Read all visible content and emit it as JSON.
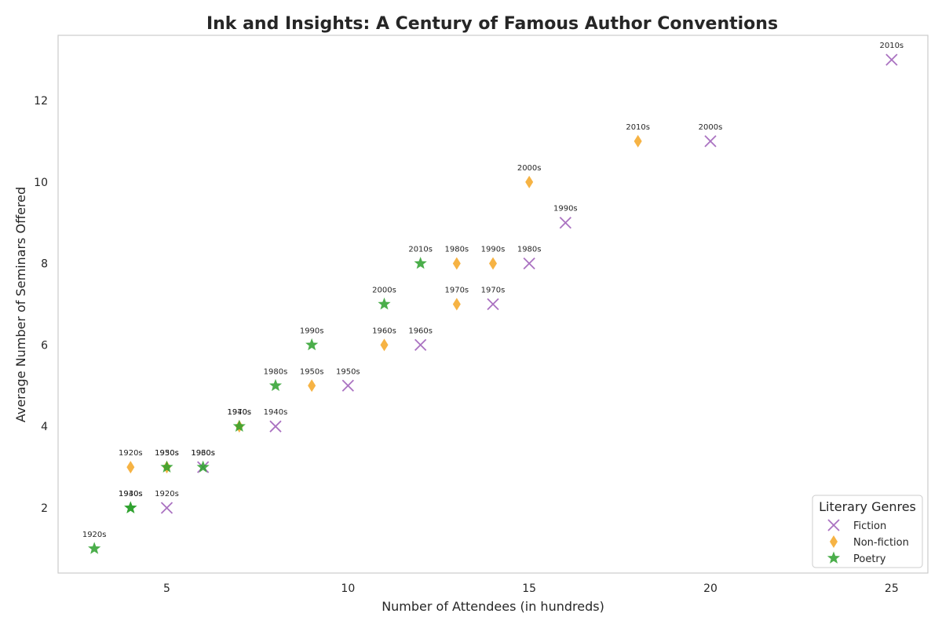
{
  "chart_data": {
    "type": "scatter",
    "title": "Ink and Insights: A Century of Famous Author Conventions",
    "xlabel": "Number of Attendees (in hundreds)",
    "ylabel": "Average Number of Seminars Offered",
    "xlim": [
      2,
      26
    ],
    "ylim": [
      0.4,
      13.6
    ],
    "xticks": [
      5,
      10,
      15,
      20,
      25
    ],
    "yticks": [
      2,
      4,
      6,
      8,
      10,
      12
    ],
    "grid": false,
    "legend_title": "Literary Genres",
    "legend_position": "lower-right",
    "series": [
      {
        "name": "Fiction",
        "marker": "x",
        "color": "#9b59b6",
        "points": [
          {
            "x": 5,
            "y": 2,
            "label": "1920s"
          },
          {
            "x": 6,
            "y": 3,
            "label": "1930s"
          },
          {
            "x": 8,
            "y": 4,
            "label": "1940s"
          },
          {
            "x": 10,
            "y": 5,
            "label": "1950s"
          },
          {
            "x": 12,
            "y": 6,
            "label": "1960s"
          },
          {
            "x": 14,
            "y": 7,
            "label": "1970s"
          },
          {
            "x": 15,
            "y": 8,
            "label": "1980s"
          },
          {
            "x": 16,
            "y": 9,
            "label": "1990s"
          },
          {
            "x": 20,
            "y": 11,
            "label": "2000s"
          },
          {
            "x": 25,
            "y": 13,
            "label": "2010s"
          }
        ]
      },
      {
        "name": "Non-fiction",
        "marker": "diamond",
        "color": "#f5a623",
        "points": [
          {
            "x": 4,
            "y": 3,
            "label": "1920s"
          },
          {
            "x": 5,
            "y": 3,
            "label": "1930s"
          },
          {
            "x": 7,
            "y": 4,
            "label": "1940s"
          },
          {
            "x": 9,
            "y": 5,
            "label": "1950s"
          },
          {
            "x": 11,
            "y": 6,
            "label": "1960s"
          },
          {
            "x": 13,
            "y": 7,
            "label": "1970s"
          },
          {
            "x": 13,
            "y": 8,
            "label": "1980s"
          },
          {
            "x": 14,
            "y": 8,
            "label": "1990s"
          },
          {
            "x": 15,
            "y": 10,
            "label": "2000s"
          },
          {
            "x": 18,
            "y": 11,
            "label": "2010s"
          }
        ]
      },
      {
        "name": "Poetry",
        "marker": "star",
        "color": "#2ca02c",
        "points": [
          {
            "x": 3,
            "y": 1,
            "label": "1920s"
          },
          {
            "x": 4,
            "y": 2,
            "label": "1930s"
          },
          {
            "x": 4,
            "y": 2,
            "label": "1940s"
          },
          {
            "x": 5,
            "y": 3,
            "label": "1950s"
          },
          {
            "x": 6,
            "y": 3,
            "label": "1960s"
          },
          {
            "x": 7,
            "y": 4,
            "label": "1970s"
          },
          {
            "x": 8,
            "y": 5,
            "label": "1980s"
          },
          {
            "x": 9,
            "y": 6,
            "label": "1990s"
          },
          {
            "x": 11,
            "y": 7,
            "label": "2000s"
          },
          {
            "x": 12,
            "y": 8,
            "label": "2010s"
          }
        ]
      }
    ]
  }
}
